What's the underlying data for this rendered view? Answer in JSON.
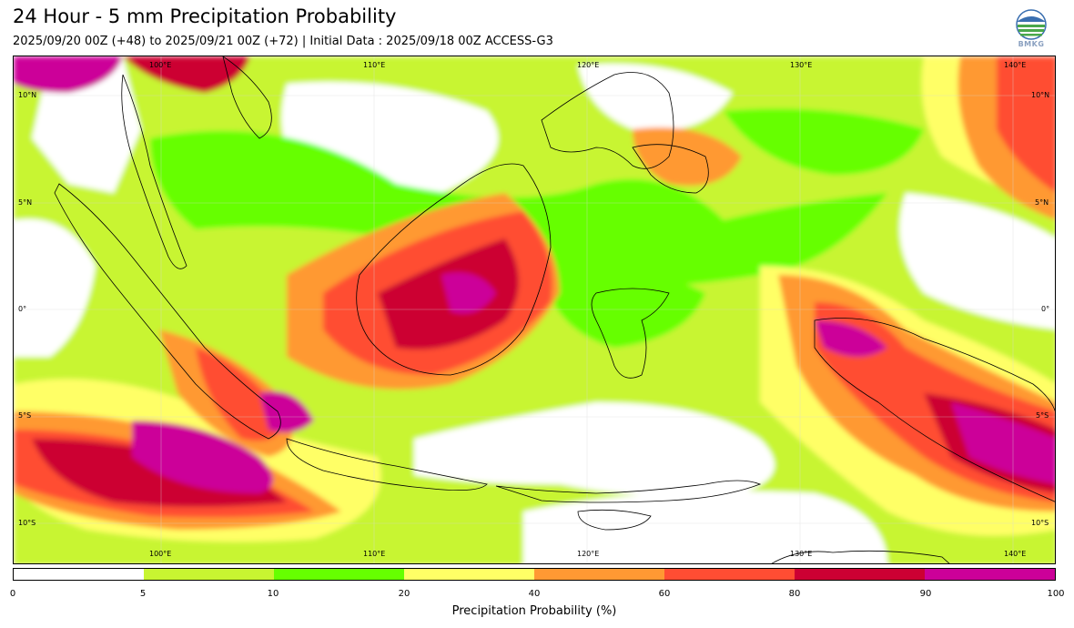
{
  "title": "24 Hour - 5 mm Precipitation Probability",
  "subtitle": "2025/09/20 00Z (+48) to 2025/09/21 00Z (+72) | Initial Data : 2025/09/18 00Z ACCESS-G3",
  "logo_text": "BMKG",
  "map": {
    "lon_range": [
      95,
      143
    ],
    "lat_range": [
      -11.5,
      12
    ],
    "top_longitude_labels": [
      "100°E",
      "110°E",
      "120°E",
      "130°E",
      "140°E"
    ],
    "bottom_longitude_labels": [
      "100°E",
      "110°E",
      "120°E",
      "130°E",
      "140°E"
    ],
    "left_latitude_labels": [
      "10°N",
      "5°N",
      "0°",
      "5°S",
      "10°S"
    ],
    "right_latitude_labels": [
      "10°N",
      "5°N",
      "0°",
      "5°S",
      "10°S"
    ]
  },
  "colorbar": {
    "ticks": [
      "0",
      "5",
      "10",
      "20",
      "40",
      "60",
      "80",
      "90",
      "100"
    ],
    "colors": [
      "#ffffff",
      "#c8f531",
      "#66ff00",
      "#ffff66",
      "#ff9933",
      "#ff4d33",
      "#cc0033",
      "#cc0099"
    ],
    "label": "Precipitation Probability (%)"
  }
}
